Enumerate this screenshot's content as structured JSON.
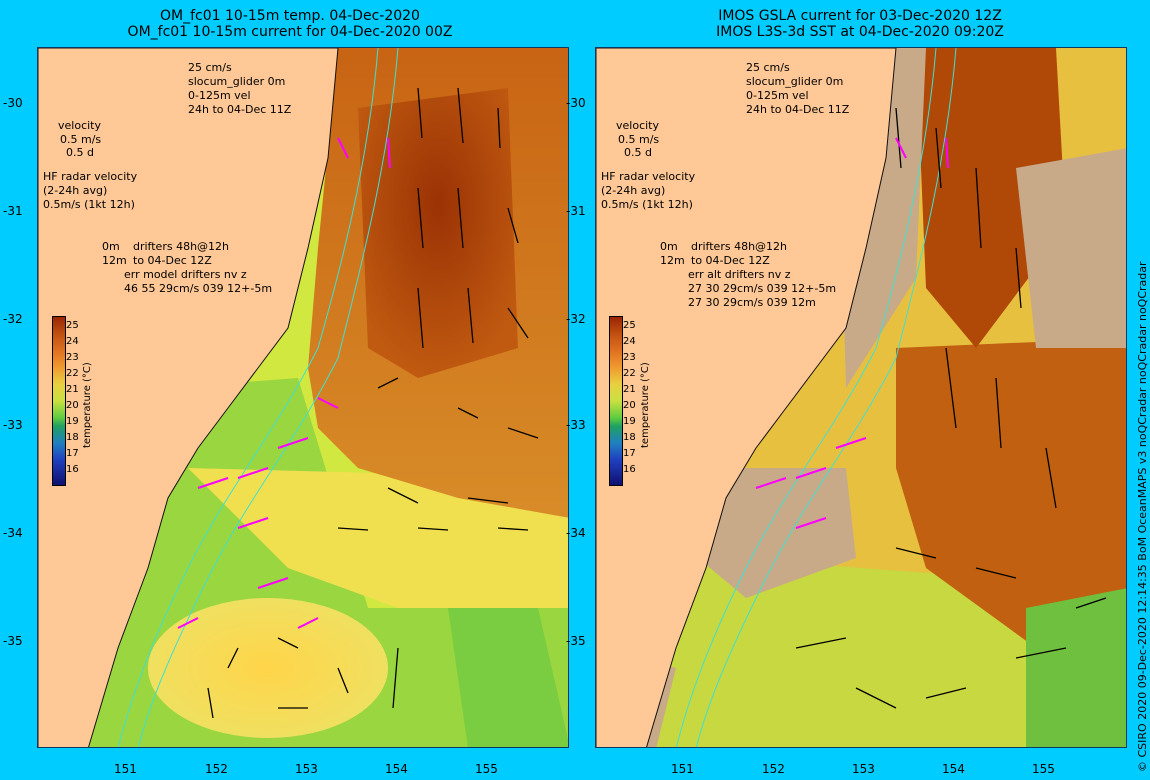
{
  "left": {
    "title1": "OM_fc01 10-15m temp. 04-Dec-2020",
    "title2": "OM_fc01 10-15m current for 04-Dec-2020 00Z",
    "legend_scale": "25 cm/s",
    "legend_glider": "slocum_glider 0m",
    "legend_vel": "0-125m vel",
    "legend_time": "24h to 04-Dec 11Z",
    "velocity_label": "velocity",
    "velocity_scale": "0.5 m/s",
    "velocity_days": "0.5 d",
    "hf_label": "HF radar velocity",
    "hf_avg": "(2-24h avg)",
    "hf_scale": "0.5m/s (1kt 12h)",
    "drifter_0m": "0m",
    "drifter_48h": "drifters 48h@12h",
    "drifter_12m": "12m",
    "drifter_to": "to 04-Dec 12Z",
    "err_line1": "err model drifters nv z",
    "err_line2": "46 55 29cm/s 039 12+-5m",
    "err_line3": ""
  },
  "right": {
    "title1": "IMOS GSLA current for 03-Dec-2020 12Z",
    "title2": "IMOS L3S-3d SST at 04-Dec-2020 09:20Z",
    "legend_scale": "25 cm/s",
    "legend_glider": "slocum_glider 0m",
    "legend_vel": "0-125m vel",
    "legend_time": "24h to 04-Dec 11Z",
    "velocity_label": "velocity",
    "velocity_scale": "0.5 m/s",
    "velocity_days": "0.5 d",
    "hf_label": "HF radar velocity",
    "hf_avg": "(2-24h avg)",
    "hf_scale": "0.5m/s (1kt 12h)",
    "drifter_0m": "0m",
    "drifter_48h": "drifters 48h@12h",
    "drifter_12m": "12m",
    "drifter_to": "to 04-Dec 12Z",
    "err_line1": "err alt drifters nv z",
    "err_line2": "27 30 29cm/s 039 12+-5m",
    "err_line3": "27 30 29cm/s 039 12m"
  },
  "axes": {
    "lat_ticks": [
      "-30",
      "-31",
      "-32",
      "-33",
      "-34",
      "-35"
    ],
    "lon_ticks": [
      "151",
      "152",
      "153",
      "154",
      "155"
    ]
  },
  "colorbar": {
    "title": "temperature (°C)",
    "ticks": [
      "25",
      "24",
      "23",
      "22",
      "21",
      "20",
      "19",
      "18",
      "17",
      "16"
    ]
  },
  "credit": "© CSIRO 2020   09-Dec-2020 12:14:35 BoM OceanMAPS v3 noQCradar noQCradar noQCradar",
  "colors": {
    "background": "#00ccff",
    "land": "#ffc896",
    "glider": "#ff00ff",
    "model_vel": "#0000ff",
    "isobath": "#40e0d0",
    "cloud": "#c8aa88"
  }
}
